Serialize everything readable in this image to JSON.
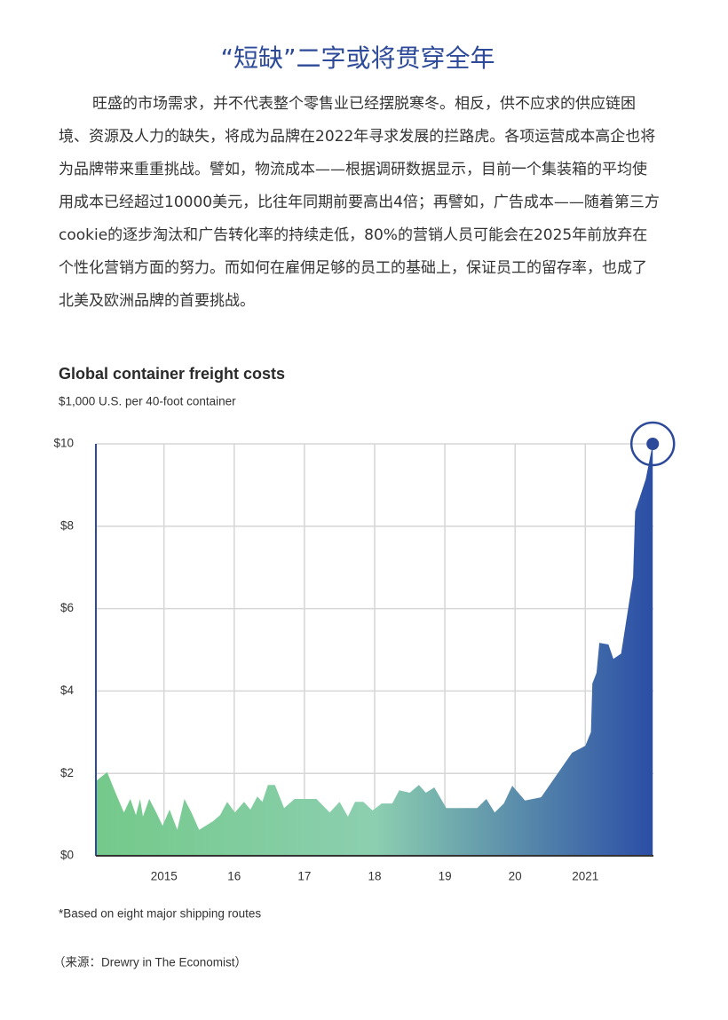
{
  "heading": "“短缺”二字或将贯穿全年",
  "paragraph_lines": [
    "旺盛的市场需求，并不代表整个零售业已经摆脱寒冬。相反，供不应求的供应链困",
    "境、资源及人力的缺失，将成为品牌在2022年寻求发展的拦路虎。各项运营成本高企也将",
    "为品牌带来重重挑战。譬如，物流成本——根据调研数据显示，目前一个集装箱的平均使",
    "用成本已经超过10000美元，比往年同期前要高出4倍；再譬如，广告成本——随着第三方",
    "cookie的逐步淘汰和广告转化率的持续走低，80%的营销人员可能会在2025年前放弃在",
    "个性化营销方面的努力。而如何在雇佣足够的员工的基础上，保证员工的留存率，也成了",
    "北美及欧洲品牌的首要挑战。"
  ],
  "chart_data": {
    "type": "area",
    "title": "Global container freight costs",
    "subtitle": "$1,000 U.S. per 40-foot container",
    "x": [
      2014.03,
      2014.19,
      2014.32,
      2014.43,
      2014.52,
      2014.6,
      2014.66,
      2014.7,
      2014.79,
      2014.89,
      2014.98,
      2015.08,
      2015.19,
      2015.29,
      2015.39,
      2015.5,
      2015.7,
      2015.8,
      2015.9,
      2016.01,
      2016.14,
      2016.23,
      2016.33,
      2016.4,
      2016.48,
      2016.58,
      2016.71,
      2016.86,
      2017.02,
      2017.17,
      2017.36,
      2017.5,
      2017.62,
      2017.72,
      2017.84,
      2017.97,
      2018.1,
      2018.25,
      2018.35,
      2018.5,
      2018.63,
      2018.73,
      2018.85,
      2019.02,
      2019.23,
      2019.46,
      2019.59,
      2019.71,
      2019.84,
      2019.96,
      2020.14,
      2020.37,
      2020.62,
      2020.81,
      2021.0,
      2021.08,
      2021.1,
      2021.16,
      2021.2,
      2021.33,
      2021.4,
      2021.51,
      2021.68,
      2021.71,
      2021.86,
      2021.96
    ],
    "values": [
      1.81,
      2.03,
      1.49,
      1.05,
      1.38,
      0.99,
      1.38,
      0.95,
      1.38,
      1.05,
      0.73,
      1.12,
      0.63,
      1.38,
      1.05,
      0.63,
      0.84,
      0.99,
      1.31,
      1.05,
      1.31,
      1.12,
      1.44,
      1.31,
      1.72,
      1.72,
      1.16,
      1.38,
      1.38,
      1.38,
      1.05,
      1.31,
      0.95,
      1.31,
      1.31,
      1.1,
      1.27,
      1.27,
      1.59,
      1.53,
      1.72,
      1.53,
      1.66,
      1.16,
      1.16,
      1.16,
      1.38,
      1.05,
      1.27,
      1.7,
      1.34,
      1.42,
      2.03,
      2.5,
      2.67,
      3.0,
      4.18,
      4.44,
      5.17,
      5.13,
      4.78,
      4.91,
      6.77,
      8.36,
      9.14,
      10.0
    ],
    "gradient": [
      "#74c98a",
      "#8ccfb0",
      "#2b4ea6"
    ],
    "axis_color": "#2d4a9a",
    "xlim": [
      2014.03,
      2021.97
    ],
    "xticks": [
      2015,
      {
        "value": 2016,
        "label": "16"
      },
      {
        "value": 2017,
        "label": "17"
      },
      {
        "value": 2018,
        "label": "18"
      },
      {
        "value": 2019,
        "label": "19"
      },
      {
        "value": 2020,
        "label": "20"
      },
      2021
    ],
    "ylim": [
      0,
      10
    ],
    "yticks": [
      {
        "value": 0,
        "label": "$0"
      },
      {
        "value": 2,
        "label": "$2"
      },
      {
        "value": 4,
        "label": "$4"
      },
      {
        "value": 6,
        "label": "$6"
      },
      {
        "value": 8,
        "label": "$8"
      },
      {
        "value": 10,
        "label": "$10"
      }
    ],
    "grid": true,
    "footnote": "*Based on eight major shipping routes"
  },
  "source": "（来源：Drewry in The Economist）"
}
